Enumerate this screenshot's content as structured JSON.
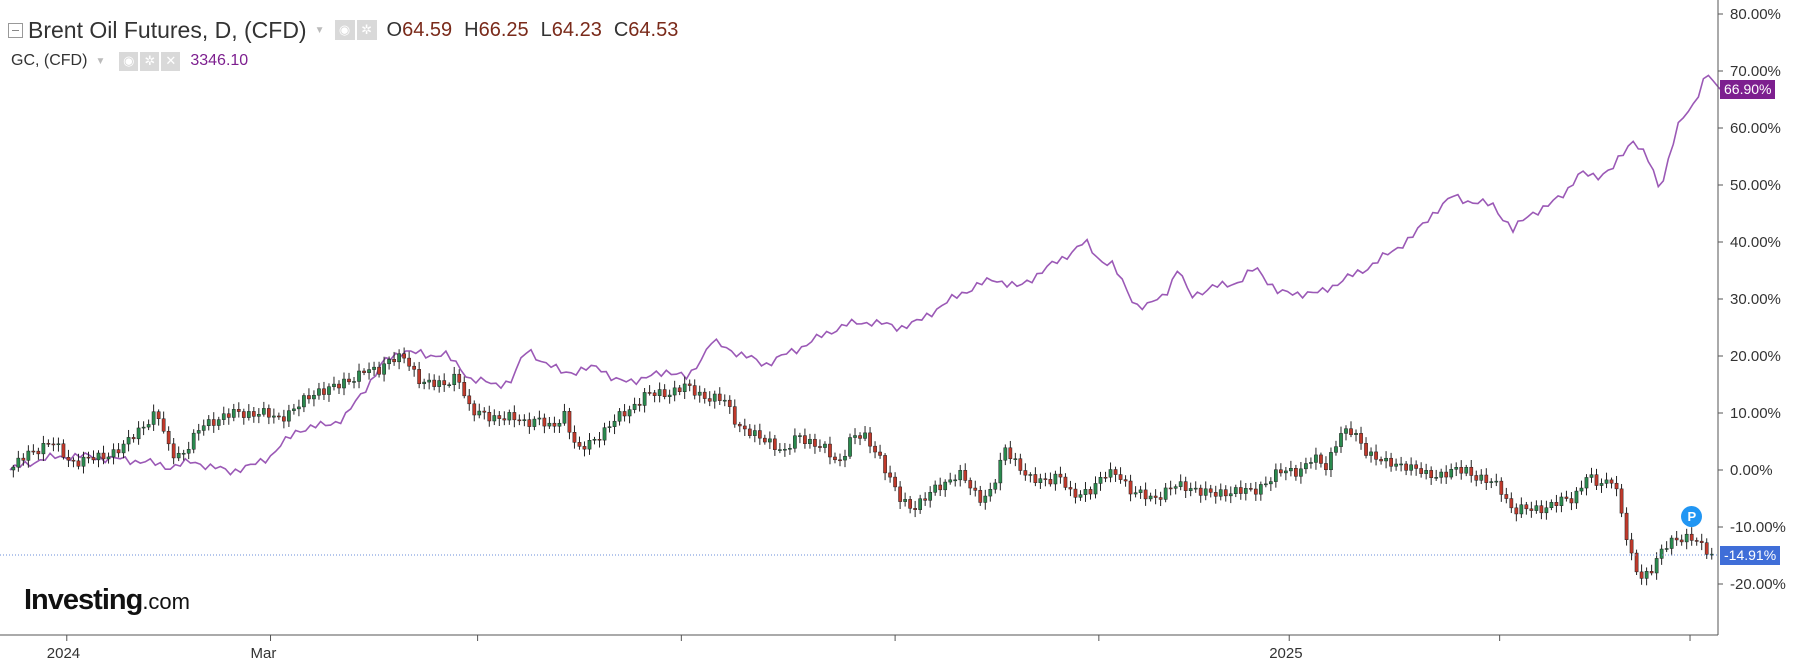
{
  "primary": {
    "title": "Brent Oil Futures, D, (CFD)",
    "open_label": "O",
    "open": "64.59",
    "high_label": "H",
    "high": "66.25",
    "low_label": "L",
    "low": "64.23",
    "close_label": "C",
    "close": "64.53"
  },
  "secondary": {
    "title": "GC, (CFD)",
    "value": "3346.10"
  },
  "tags": {
    "gc_last": "66.90%",
    "brent_last": "-14.91%"
  },
  "marker_label": "P",
  "logo": {
    "main": "Investing",
    "suffix": ".com"
  },
  "colors": {
    "up": "#2a8a4e",
    "down": "#c0392b",
    "gc_line": "#9b59b6",
    "gc_tag": "#7d1f8f",
    "brent_tag": "#3f6ed8",
    "dotted": "#6a8dd8"
  },
  "chart_data": {
    "type": "line",
    "y_axis": {
      "unit": "%",
      "ylim": [
        -28,
        81
      ],
      "ticks": [
        80,
        70,
        60,
        50,
        40,
        30,
        20,
        10,
        0,
        -10,
        -20
      ],
      "tick_labels": [
        "80.00%",
        "70.00%",
        "60.00%",
        "50.00%",
        "40.00%",
        "30.00%",
        "20.00%",
        "10.00%",
        "0.00%",
        "-10.00%",
        "-20.00%"
      ]
    },
    "x_axis": {
      "range_days": [
        0,
        505
      ],
      "labels": [
        {
          "text": "2024",
          "day": 17
        },
        {
          "text": "Mar",
          "day": 78
        },
        {
          "text": "2025",
          "day": 383
        }
      ],
      "ticks_days": [
        17,
        78,
        140,
        201,
        265,
        326,
        383,
        446,
        503
      ]
    },
    "reference_line": -14.91,
    "series": [
      {
        "name": "GC, (CFD)",
        "style": "line",
        "points": [
          [
            0,
            0
          ],
          [
            10,
            2
          ],
          [
            20,
            2.5
          ],
          [
            30,
            2
          ],
          [
            40,
            1.5
          ],
          [
            48,
            0.5
          ],
          [
            55,
            1.5
          ],
          [
            60,
            0.5
          ],
          [
            66,
            -0.2
          ],
          [
            72,
            0.6
          ],
          [
            78,
            2.5
          ],
          [
            86,
            7
          ],
          [
            95,
            8
          ],
          [
            100,
            9
          ],
          [
            106,
            14
          ],
          [
            112,
            19
          ],
          [
            118,
            21
          ],
          [
            125,
            20
          ],
          [
            130,
            20.5
          ],
          [
            138,
            16
          ],
          [
            145,
            15
          ],
          [
            150,
            15.5
          ],
          [
            155,
            21.5
          ],
          [
            160,
            18.5
          ],
          [
            165,
            17.5
          ],
          [
            170,
            17
          ],
          [
            176,
            18.5
          ],
          [
            181,
            15.5
          ],
          [
            190,
            16
          ],
          [
            197,
            17.5
          ],
          [
            203,
            16
          ],
          [
            210,
            22.5
          ],
          [
            218,
            20.5
          ],
          [
            226,
            18.5
          ],
          [
            235,
            21
          ],
          [
            243,
            23.5
          ],
          [
            250,
            25.5
          ],
          [
            258,
            26
          ],
          [
            266,
            25
          ],
          [
            272,
            26
          ],
          [
            278,
            28.5
          ],
          [
            285,
            31
          ],
          [
            290,
            32.5
          ],
          [
            295,
            33.5
          ],
          [
            302,
            32
          ],
          [
            308,
            34.5
          ],
          [
            316,
            37.5
          ],
          [
            322,
            40
          ],
          [
            326,
            37
          ],
          [
            330,
            36
          ],
          [
            337,
            29
          ],
          [
            340,
            28.5
          ],
          [
            346,
            31
          ],
          [
            350,
            35.5
          ],
          [
            353,
            30.5
          ],
          [
            360,
            32
          ],
          [
            368,
            33
          ],
          [
            373,
            35.5
          ],
          [
            380,
            31
          ],
          [
            385,
            31
          ],
          [
            392,
            31
          ],
          [
            398,
            33
          ],
          [
            405,
            35
          ],
          [
            413,
            38
          ],
          [
            420,
            41
          ],
          [
            426,
            45
          ],
          [
            432,
            48
          ],
          [
            438,
            47
          ],
          [
            444,
            46.5
          ],
          [
            450,
            42
          ],
          [
            455,
            45
          ],
          [
            460,
            46
          ],
          [
            466,
            49
          ],
          [
            470,
            52
          ],
          [
            475,
            51.5
          ],
          [
            480,
            53
          ],
          [
            486,
            58
          ],
          [
            490,
            55
          ],
          [
            494,
            49
          ],
          [
            499,
            60
          ],
          [
            504,
            64
          ],
          [
            508,
            70
          ],
          [
            512,
            66
          ],
          [
            515,
            66.9
          ]
        ]
      },
      {
        "name": "Brent Oil Futures, D, (CFD)",
        "style": "candlestick",
        "closes": [
          [
            0,
            0
          ],
          [
            6,
            3
          ],
          [
            12,
            5
          ],
          [
            18,
            1.5
          ],
          [
            26,
            2
          ],
          [
            34,
            4
          ],
          [
            40,
            8
          ],
          [
            44,
            10
          ],
          [
            48,
            3
          ],
          [
            52,
            3
          ],
          [
            58,
            8
          ],
          [
            62,
            9
          ],
          [
            68,
            10
          ],
          [
            75,
            10
          ],
          [
            80,
            9
          ],
          [
            86,
            11
          ],
          [
            92,
            14
          ],
          [
            98,
            14.5
          ],
          [
            102,
            16
          ],
          [
            106,
            17.5
          ],
          [
            110,
            17
          ],
          [
            114,
            20
          ],
          [
            118,
            19.5
          ],
          [
            122,
            16
          ],
          [
            126,
            15.5
          ],
          [
            130,
            14.5
          ],
          [
            134,
            17
          ],
          [
            138,
            10
          ],
          [
            144,
            9.5
          ],
          [
            150,
            9
          ],
          [
            154,
            8.5
          ],
          [
            158,
            9
          ],
          [
            162,
            7
          ],
          [
            166,
            10
          ],
          [
            170,
            3
          ],
          [
            174,
            5
          ],
          [
            178,
            7
          ],
          [
            182,
            9
          ],
          [
            186,
            11
          ],
          [
            190,
            13
          ],
          [
            196,
            13.5
          ],
          [
            202,
            14.5
          ],
          [
            208,
            13
          ],
          [
            214,
            12
          ],
          [
            218,
            8
          ],
          [
            224,
            5.5
          ],
          [
            228,
            5
          ],
          [
            232,
            3
          ],
          [
            236,
            6
          ],
          [
            240,
            5
          ],
          [
            244,
            3.5
          ],
          [
            248,
            1
          ],
          [
            252,
            6
          ],
          [
            256,
            5.5
          ],
          [
            260,
            3
          ],
          [
            266,
            -5
          ],
          [
            270,
            -6.5
          ],
          [
            274,
            -5
          ],
          [
            278,
            -3
          ],
          [
            284,
            -0.5
          ],
          [
            290,
            -5
          ],
          [
            294,
            -3.5
          ],
          [
            298,
            3.5
          ],
          [
            302,
            1
          ],
          [
            306,
            -2
          ],
          [
            310,
            -2
          ],
          [
            314,
            -0.5
          ],
          [
            318,
            -5
          ],
          [
            324,
            -3
          ],
          [
            328,
            -1
          ],
          [
            332,
            -0.5
          ],
          [
            336,
            -4
          ],
          [
            342,
            -5
          ],
          [
            348,
            -3
          ],
          [
            354,
            -3
          ],
          [
            360,
            -4.5
          ],
          [
            366,
            -3.5
          ],
          [
            372,
            -4
          ],
          [
            376,
            -2
          ],
          [
            380,
            -0.5
          ],
          [
            386,
            0
          ],
          [
            390,
            2
          ],
          [
            394,
            0.5
          ],
          [
            398,
            6.5
          ],
          [
            402,
            6.5
          ],
          [
            406,
            3.5
          ],
          [
            412,
            1
          ],
          [
            418,
            1
          ],
          [
            424,
            -1
          ],
          [
            430,
            -0.5
          ],
          [
            436,
            0
          ],
          [
            442,
            -2
          ],
          [
            446,
            -3
          ],
          [
            450,
            -7
          ],
          [
            456,
            -7
          ],
          [
            462,
            -6
          ],
          [
            468,
            -5
          ],
          [
            472,
            -1
          ],
          [
            476,
            -3
          ],
          [
            480,
            -1
          ],
          [
            482,
            -6
          ],
          [
            485,
            -15
          ],
          [
            488,
            -19
          ],
          [
            491,
            -17.5
          ],
          [
            495,
            -14
          ],
          [
            499,
            -12
          ],
          [
            503,
            -11.5
          ],
          [
            507,
            -14
          ],
          [
            510,
            -14.91
          ]
        ]
      }
    ]
  }
}
